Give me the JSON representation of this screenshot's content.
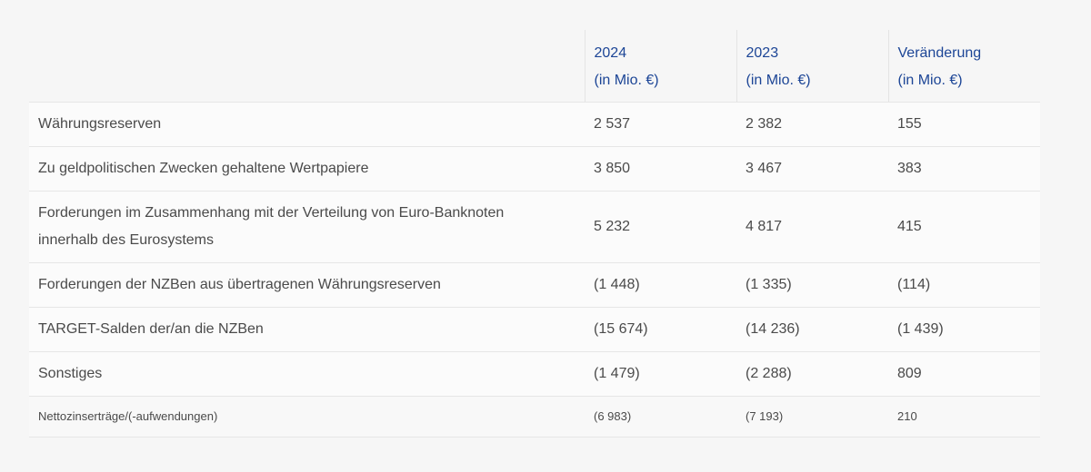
{
  "table": {
    "headers": [
      {
        "line1": "",
        "line2": ""
      },
      {
        "line1": "2024",
        "line2": "(in Mio. €)"
      },
      {
        "line1": "2023",
        "line2": "(in Mio. €)"
      },
      {
        "line1": "Veränderung",
        "line2": "(in Mio. €)"
      }
    ],
    "rows": [
      {
        "label": "Währungsreserven",
        "v2024": "2 537",
        "v2023": "2 382",
        "change": "155"
      },
      {
        "label": "Zu geldpolitischen Zwecken gehaltene Wertpapiere",
        "v2024": "3 850",
        "v2023": "3 467",
        "change": "383"
      },
      {
        "label": "Forderungen im Zusammenhang mit der Verteilung von Euro-Banknoten innerhalb des Eurosystems",
        "v2024": "5 232",
        "v2023": "4 817",
        "change": "415"
      },
      {
        "label": "Forderungen der NZBen aus übertragenen Währungsreserven",
        "v2024": "(1 448)",
        "v2023": "(1 335)",
        "change": "(114)"
      },
      {
        "label": "TARGET-Salden der/an die NZBen",
        "v2024": "(15 674)",
        "v2023": "(14 236)",
        "change": "(1 439)"
      },
      {
        "label": "Sonstiges",
        "v2024": "(1 479)",
        "v2023": "(2 288)",
        "change": "809"
      },
      {
        "label": "Nettozinserträge/(-aufwendungen)",
        "v2024": "(6 983)",
        "v2023": "(7 193)",
        "change": "210"
      }
    ]
  },
  "colors": {
    "header_text": "#1c4596",
    "body_text": "#4a4a4a",
    "page_bg": "#f6f6f6"
  }
}
